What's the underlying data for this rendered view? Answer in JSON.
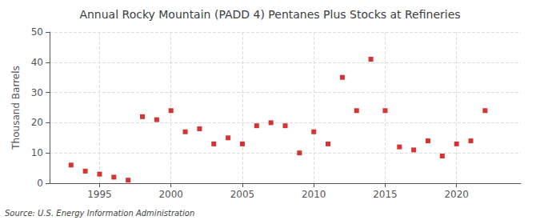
{
  "chart_data": {
    "type": "scatter",
    "title": "Annual Rocky Mountain (PADD 4) Pentanes Plus Stocks at Refineries",
    "ylabel": "Thousand Barrels",
    "annotations": [
      "Source: U.S. Energy Information Administration"
    ],
    "x": [
      1993,
      1994,
      1995,
      1996,
      1997,
      1998,
      1999,
      2000,
      2001,
      2002,
      2003,
      2004,
      2005,
      2006,
      2007,
      2008,
      2009,
      2010,
      2011,
      2012,
      2013,
      2014,
      2015,
      2016,
      2017,
      2018,
      2019,
      2020,
      2021,
      2022
    ],
    "values": [
      6,
      4,
      3,
      2,
      1,
      22,
      21,
      24,
      17,
      18,
      13,
      15,
      13,
      19,
      20,
      19,
      10,
      17,
      13,
      35,
      24,
      41,
      24,
      12,
      11,
      14,
      9,
      13,
      14,
      24
    ],
    "color": "#cc0000",
    "marker": "square",
    "xlim": [
      1991.5,
      2024.5
    ],
    "xticks": [
      1995,
      2000,
      2005,
      2010,
      2015,
      2020
    ],
    "ylim": [
      0,
      50
    ],
    "yticks": [
      0,
      10,
      20,
      30,
      40,
      50
    ],
    "grid": true
  }
}
